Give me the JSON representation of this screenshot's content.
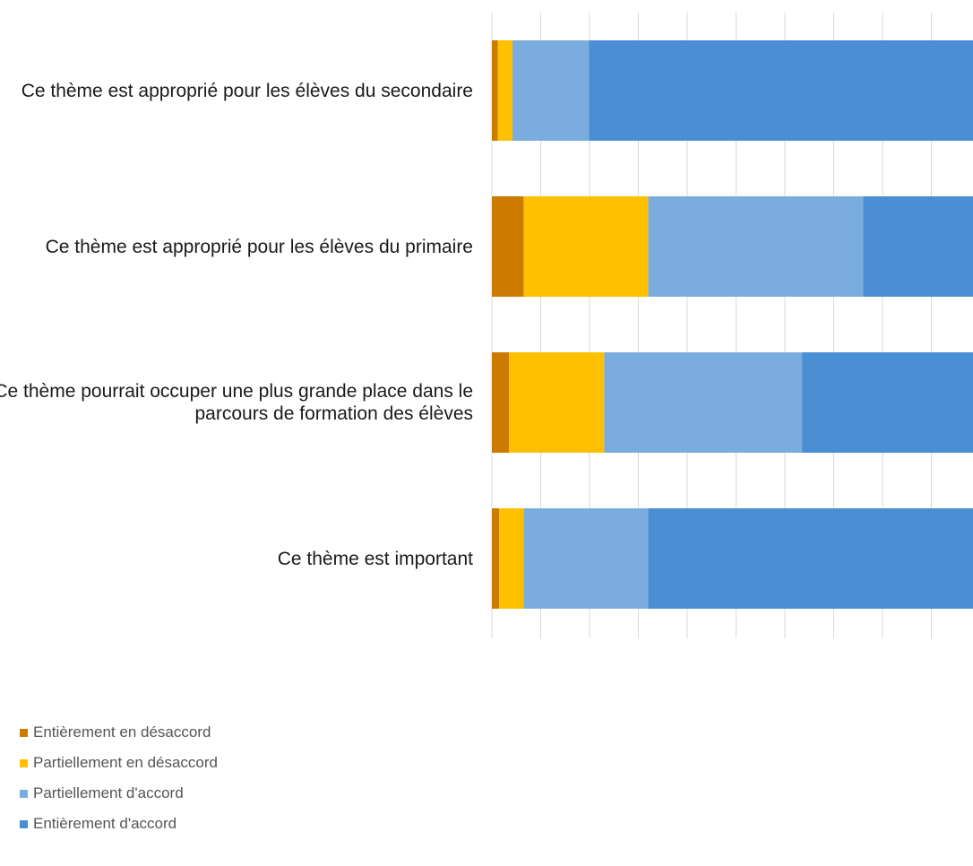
{
  "chart_data": {
    "type": "bar",
    "orientation": "horizontal",
    "stacked": true,
    "title": "",
    "xlabel": "",
    "ylabel": "",
    "xlim": [
      0,
      100
    ],
    "grid": true,
    "legend_position": "bottom-left",
    "categories": [
      "Ce thème est approprié pour les élèves du secondaire",
      "Ce thème est approprié pour les élèves du primaire",
      "Ce thème pourrait occuper une plus grande place dans le parcours de formation des élèves",
      "Ce thème est important"
    ],
    "series": [
      {
        "name": "Entièrement en désaccord",
        "color": "#cc7a00",
        "values": [
          1.2,
          6.5,
          3.5,
          1.5
        ]
      },
      {
        "name": "Partiellement en désaccord",
        "color": "#ffc000",
        "values": [
          3.0,
          25.5,
          19.5,
          5.0
        ]
      },
      {
        "name": "Partiellement d'accord",
        "color": "#7aadde",
        "values": [
          15.7,
          44.0,
          40.5,
          25.5
        ]
      },
      {
        "name": "Entièrement d'accord",
        "color": "#4a8fd4",
        "values": [
          80.1,
          24.0,
          36.5,
          68.0
        ]
      }
    ]
  }
}
